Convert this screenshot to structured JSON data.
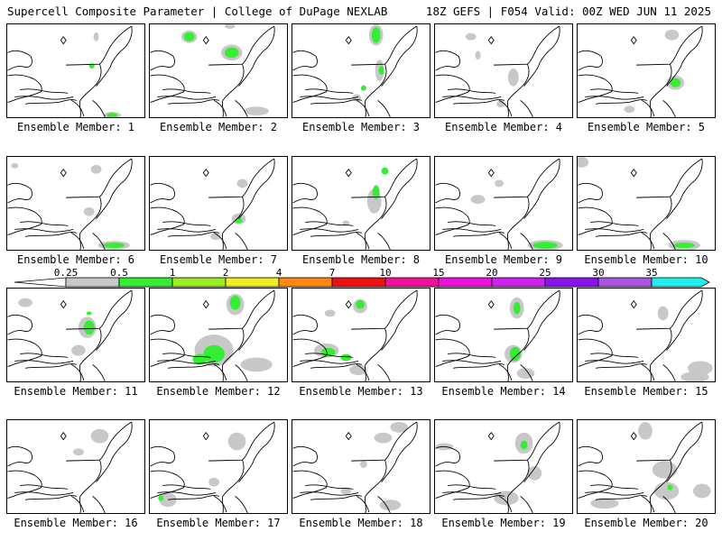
{
  "header": {
    "left": "Supercell Composite Parameter | College of DuPage NEXLAB",
    "right": "18Z GEFS | F054 Valid: 00Z WED JUN 11 2025"
  },
  "legend": {
    "ticks": [
      "0.25",
      "0.5",
      "1",
      "2",
      "4",
      "7",
      "10",
      "15",
      "20",
      "25",
      "30",
      "35"
    ],
    "colors": [
      "#c8c8c8",
      "#33ee33",
      "#99ee22",
      "#eeee22",
      "#ff8811",
      "#ee1111",
      "#ee1199",
      "#ee11dd",
      "#cc22ee",
      "#8811ee",
      "#aa55dd",
      "#22eeee"
    ]
  },
  "panels": [
    {
      "label": "Ensemble Member: 1"
    },
    {
      "label": "Ensemble Member: 2"
    },
    {
      "label": "Ensemble Member: 3"
    },
    {
      "label": "Ensemble Member: 4"
    },
    {
      "label": "Ensemble Member: 5"
    },
    {
      "label": "Ensemble Member: 6"
    },
    {
      "label": "Ensemble Member: 7"
    },
    {
      "label": "Ensemble Member: 8"
    },
    {
      "label": "Ensemble Member: 9"
    },
    {
      "label": "Ensemble Member: 10"
    },
    {
      "label": "Ensemble Member: 11"
    },
    {
      "label": "Ensemble Member: 12"
    },
    {
      "label": "Ensemble Member: 13"
    },
    {
      "label": "Ensemble Member: 14"
    },
    {
      "label": "Ensemble Member: 15"
    },
    {
      "label": "Ensemble Member: 16"
    },
    {
      "label": "Ensemble Member: 17"
    },
    {
      "label": "Ensemble Member: 18"
    },
    {
      "label": "Ensemble Member: 19"
    },
    {
      "label": "Ensemble Member: 20"
    }
  ]
}
